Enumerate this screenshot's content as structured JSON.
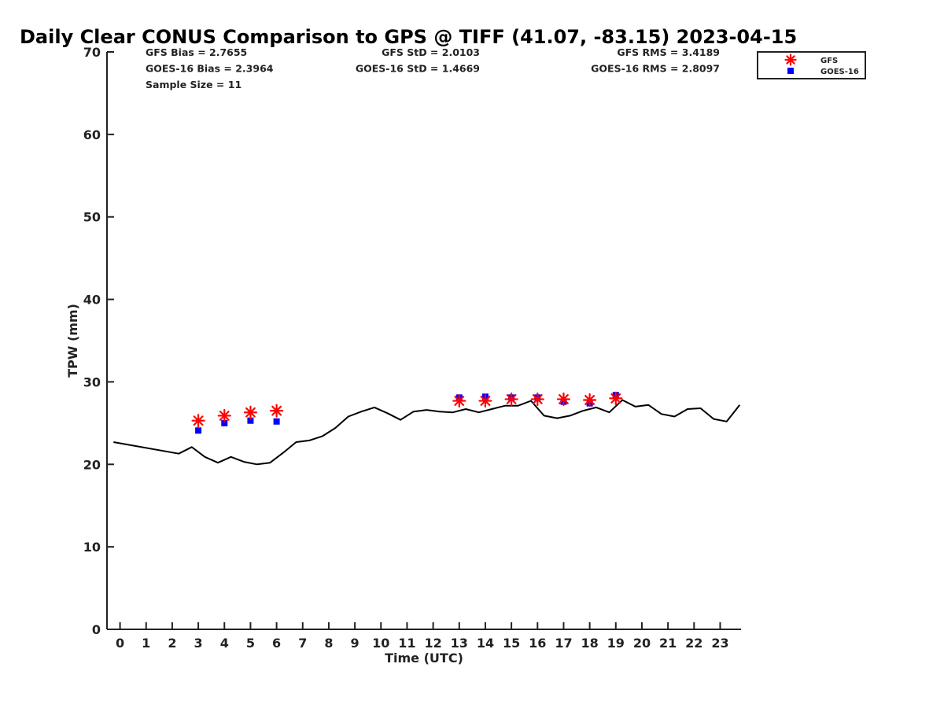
{
  "chart_data": {
    "type": "scatter",
    "title": "Daily Clear CONUS Comparison to GPS @ TIFF (41.07, -83.15) 2023-04-15",
    "xlabel": "Time (UTC)",
    "ylabel": "TPW (mm)",
    "xlim": [
      -0.5,
      23.8
    ],
    "ylim": [
      0,
      70
    ],
    "x_ticks": [
      0,
      1,
      2,
      3,
      4,
      5,
      6,
      7,
      8,
      9,
      10,
      11,
      12,
      13,
      14,
      15,
      16,
      17,
      18,
      19,
      20,
      21,
      22,
      23
    ],
    "y_ticks": [
      0,
      10,
      20,
      30,
      40,
      50,
      60,
      70
    ],
    "grid": false,
    "legend_position": "top-right",
    "stats": [
      {
        "text": "GFS Bias = 2.7655",
        "col": 0,
        "row": 0
      },
      {
        "text": "GFS StD = 2.0103",
        "col": 1,
        "row": 0
      },
      {
        "text": "GFS RMS = 3.4189",
        "col": 2,
        "row": 0
      },
      {
        "text": "GOES-16 Bias = 2.3964",
        "col": 0,
        "row": 1
      },
      {
        "text": "GOES-16 StD = 1.4669",
        "col": 1,
        "row": 1
      },
      {
        "text": "GOES-16 RMS = 2.8097",
        "col": 2,
        "row": 1
      },
      {
        "text": "Sample Size = 11",
        "col": 0,
        "row": 2
      }
    ],
    "series": [
      {
        "name": "GFS",
        "marker": "asterisk",
        "color": "#ff0000",
        "points": [
          [
            3,
            25.3
          ],
          [
            4,
            25.9
          ],
          [
            5,
            26.3
          ],
          [
            6,
            26.5
          ],
          [
            13,
            27.7
          ],
          [
            14,
            27.7
          ],
          [
            15,
            27.9
          ],
          [
            16,
            27.9
          ],
          [
            17,
            27.9
          ],
          [
            18,
            27.8
          ],
          [
            19,
            28.0
          ]
        ]
      },
      {
        "name": "GOES-16",
        "marker": "square",
        "color": "#0000ff",
        "points": [
          [
            3,
            24.1
          ],
          [
            4,
            25.0
          ],
          [
            5,
            25.3
          ],
          [
            6,
            25.2
          ],
          [
            13,
            28.1
          ],
          [
            14,
            28.2
          ],
          [
            15,
            28.1
          ],
          [
            16,
            28.1
          ],
          [
            17,
            27.6
          ],
          [
            18,
            27.4
          ],
          [
            19,
            28.4
          ]
        ]
      },
      {
        "marker": "line",
        "color": "#000000",
        "points": [
          [
            -0.25,
            22.7
          ],
          [
            2.25,
            21.3
          ],
          [
            2.75,
            22.1
          ],
          [
            3.25,
            20.9
          ],
          [
            3.75,
            20.2
          ],
          [
            4.25,
            20.9
          ],
          [
            4.75,
            20.3
          ],
          [
            5.25,
            20.0
          ],
          [
            5.75,
            20.2
          ],
          [
            6.25,
            21.4
          ],
          [
            6.75,
            22.7
          ],
          [
            7.25,
            22.9
          ],
          [
            7.75,
            23.4
          ],
          [
            8.25,
            24.4
          ],
          [
            8.75,
            25.8
          ],
          [
            9.25,
            26.4
          ],
          [
            9.75,
            26.9
          ],
          [
            10.25,
            26.2
          ],
          [
            10.75,
            25.4
          ],
          [
            11.25,
            26.4
          ],
          [
            11.75,
            26.6
          ],
          [
            12.25,
            26.4
          ],
          [
            12.75,
            26.3
          ],
          [
            13.25,
            26.7
          ],
          [
            13.75,
            26.3
          ],
          [
            14.25,
            26.7
          ],
          [
            14.75,
            27.1
          ],
          [
            15.25,
            27.1
          ],
          [
            15.75,
            27.7
          ],
          [
            16.25,
            25.9
          ],
          [
            16.75,
            25.6
          ],
          [
            17.25,
            25.9
          ],
          [
            17.75,
            26.5
          ],
          [
            18.25,
            26.9
          ],
          [
            18.75,
            26.3
          ],
          [
            19.25,
            27.8
          ],
          [
            19.75,
            27.0
          ],
          [
            20.25,
            27.2
          ],
          [
            20.75,
            26.1
          ],
          [
            21.25,
            25.8
          ],
          [
            21.75,
            26.7
          ],
          [
            22.25,
            26.8
          ],
          [
            22.75,
            25.5
          ],
          [
            23.25,
            25.2
          ],
          [
            23.75,
            27.2
          ]
        ]
      }
    ]
  }
}
